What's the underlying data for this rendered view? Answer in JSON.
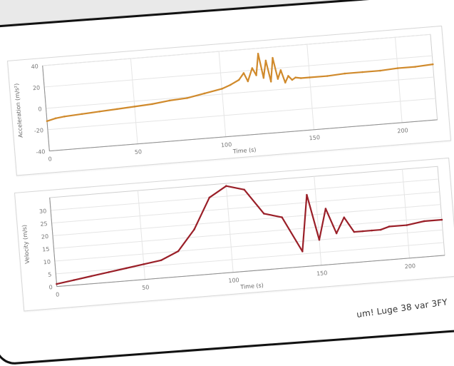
{
  "caption": "um! Luge 38 var 3FY",
  "chart_data": [
    {
      "type": "line",
      "color": "#d08a2c",
      "xlabel": "Time (s)",
      "ylabel": "Acceleration (m/s²)",
      "xlim": [
        0,
        220
      ],
      "ylim": [
        -40,
        40
      ],
      "xticks": [
        0,
        50,
        100,
        150,
        200
      ],
      "xtick_labels": [
        "0",
        "50",
        "100",
        "150",
        "200"
      ],
      "yticks": [
        -40,
        -20,
        0,
        20,
        40
      ],
      "ytick_labels": [
        "-40",
        "-20",
        "0",
        "20",
        "40"
      ],
      "series": [
        {
          "x": [
            0,
            5,
            10,
            20,
            30,
            40,
            50,
            60,
            70,
            80,
            90,
            100,
            105,
            110,
            113,
            115,
            118,
            120,
            122,
            124,
            126,
            128,
            130,
            132,
            134,
            136,
            138,
            140,
            142,
            145,
            150,
            160,
            170,
            180,
            190,
            200,
            210,
            220
          ],
          "values": [
            -12,
            -10,
            -9,
            -8,
            -7,
            -6,
            -5,
            -4,
            -2,
            -1,
            2,
            5,
            8,
            12,
            18,
            10,
            22,
            15,
            35,
            12,
            28,
            8,
            30,
            10,
            18,
            6,
            12,
            8,
            10,
            9,
            9,
            9,
            10,
            10,
            10,
            11,
            11,
            12
          ]
        }
      ],
      "grid": true
    },
    {
      "type": "line",
      "color": "#9a1f28",
      "xlabel": "Time (s)",
      "ylabel": "Velocity (m/s)",
      "xlim": [
        0,
        220
      ],
      "ylim": [
        0,
        35
      ],
      "xticks": [
        0,
        50,
        100,
        150,
        200
      ],
      "xtick_labels": [
        "0",
        "50",
        "100",
        "150",
        "200"
      ],
      "yticks": [
        0,
        5,
        10,
        15,
        20,
        25,
        30
      ],
      "ytick_labels": [
        "0",
        "5",
        "10",
        "15",
        "20",
        "25",
        "30"
      ],
      "series": [
        {
          "x": [
            0,
            10,
            20,
            30,
            40,
            50,
            60,
            70,
            80,
            90,
            100,
            110,
            120,
            130,
            140,
            145,
            150,
            155,
            160,
            165,
            170,
            175,
            180,
            185,
            190,
            200,
            210,
            220
          ],
          "values": [
            1,
            2,
            3,
            4,
            5,
            6,
            7,
            10,
            18,
            30,
            34,
            32,
            22,
            20,
            6,
            28,
            10,
            22,
            12,
            18,
            12,
            12,
            12,
            12,
            13,
            13,
            14,
            14
          ]
        }
      ],
      "grid": true
    }
  ]
}
